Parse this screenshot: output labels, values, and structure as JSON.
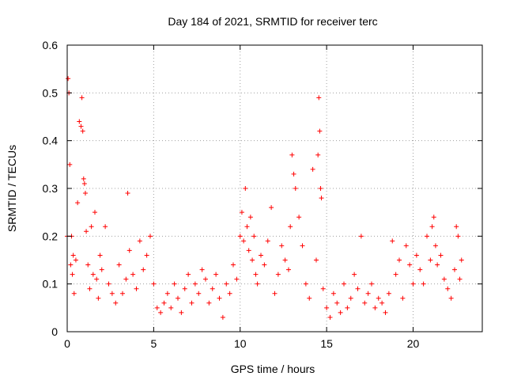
{
  "chart_data": {
    "type": "scatter",
    "title": "Day 184 of 2021, SRMTID for receiver terc",
    "xlabel": "GPS time / hours",
    "ylabel": "SRMTID / TECUs",
    "xlim": [
      0,
      24
    ],
    "ylim": [
      0,
      0.6
    ],
    "xticks": [
      0,
      5,
      10,
      15,
      20
    ],
    "xtick_labels": [
      "0",
      "5",
      "10",
      "15",
      "20"
    ],
    "yticks": [
      0,
      0.1,
      0.2,
      0.3,
      0.4,
      0.5,
      0.6
    ],
    "ytick_labels": [
      "0",
      "0.1",
      "0.2",
      "0.3",
      "0.4",
      "0.5",
      "0.6"
    ],
    "grid": true,
    "marker": "+",
    "color": "#ff0000",
    "series": [
      {
        "name": "terc",
        "x": [
          0.0,
          0.05,
          0.1,
          0.15,
          0.2,
          0.25,
          0.3,
          0.35,
          0.4,
          0.5,
          0.6,
          0.7,
          0.8,
          0.85,
          0.9,
          0.95,
          1.0,
          1.05,
          1.1,
          1.2,
          1.3,
          1.4,
          1.5,
          1.6,
          1.7,
          1.8,
          1.9,
          2.0,
          2.2,
          2.4,
          2.6,
          2.8,
          3.0,
          3.2,
          3.4,
          3.5,
          3.6,
          3.8,
          4.0,
          4.2,
          4.4,
          4.6,
          4.8,
          5.0,
          5.2,
          5.4,
          5.6,
          5.8,
          6.0,
          6.2,
          6.4,
          6.6,
          6.8,
          7.0,
          7.2,
          7.4,
          7.6,
          7.8,
          8.0,
          8.2,
          8.4,
          8.6,
          8.8,
          9.0,
          9.2,
          9.4,
          9.6,
          9.8,
          10.0,
          10.1,
          10.2,
          10.3,
          10.4,
          10.5,
          10.6,
          10.7,
          10.8,
          10.9,
          11.0,
          11.2,
          11.4,
          11.6,
          11.8,
          12.0,
          12.2,
          12.4,
          12.6,
          12.8,
          12.9,
          13.0,
          13.1,
          13.2,
          13.4,
          13.6,
          13.8,
          14.0,
          14.2,
          14.4,
          14.5,
          14.55,
          14.6,
          14.65,
          14.7,
          14.8,
          15.0,
          15.2,
          15.4,
          15.6,
          15.8,
          16.0,
          16.2,
          16.4,
          16.6,
          16.8,
          17.0,
          17.2,
          17.4,
          17.6,
          17.8,
          18.0,
          18.2,
          18.4,
          18.6,
          18.8,
          19.0,
          19.2,
          19.4,
          19.6,
          19.8,
          20.0,
          20.2,
          20.4,
          20.6,
          20.8,
          21.0,
          21.1,
          21.2,
          21.3,
          21.4,
          21.6,
          21.8,
          22.0,
          22.2,
          22.4,
          22.5,
          22.6,
          22.7,
          22.8
        ],
        "y": [
          0.2,
          0.53,
          0.5,
          0.35,
          0.14,
          0.2,
          0.12,
          0.16,
          0.08,
          0.15,
          0.27,
          0.44,
          0.43,
          0.49,
          0.42,
          0.32,
          0.31,
          0.29,
          0.21,
          0.14,
          0.09,
          0.22,
          0.12,
          0.25,
          0.11,
          0.07,
          0.16,
          0.13,
          0.22,
          0.1,
          0.08,
          0.06,
          0.14,
          0.08,
          0.11,
          0.29,
          0.17,
          0.12,
          0.09,
          0.19,
          0.13,
          0.16,
          0.2,
          0.1,
          0.05,
          0.04,
          0.06,
          0.08,
          0.05,
          0.1,
          0.07,
          0.04,
          0.09,
          0.12,
          0.06,
          0.1,
          0.08,
          0.13,
          0.11,
          0.06,
          0.09,
          0.12,
          0.07,
          0.03,
          0.1,
          0.08,
          0.14,
          0.11,
          0.2,
          0.25,
          0.19,
          0.3,
          0.22,
          0.17,
          0.24,
          0.15,
          0.2,
          0.12,
          0.1,
          0.16,
          0.14,
          0.19,
          0.26,
          0.08,
          0.12,
          0.18,
          0.15,
          0.13,
          0.22,
          0.37,
          0.33,
          0.3,
          0.24,
          0.18,
          0.1,
          0.07,
          0.34,
          0.15,
          0.37,
          0.49,
          0.42,
          0.3,
          0.28,
          0.09,
          0.05,
          0.03,
          0.08,
          0.06,
          0.04,
          0.1,
          0.05,
          0.07,
          0.12,
          0.09,
          0.2,
          0.06,
          0.08,
          0.1,
          0.05,
          0.07,
          0.06,
          0.04,
          0.08,
          0.19,
          0.12,
          0.15,
          0.07,
          0.18,
          0.14,
          0.1,
          0.16,
          0.13,
          0.1,
          0.2,
          0.15,
          0.22,
          0.24,
          0.18,
          0.14,
          0.16,
          0.11,
          0.09,
          0.07,
          0.13,
          0.22,
          0.2,
          0.11,
          0.15
        ]
      }
    ]
  }
}
